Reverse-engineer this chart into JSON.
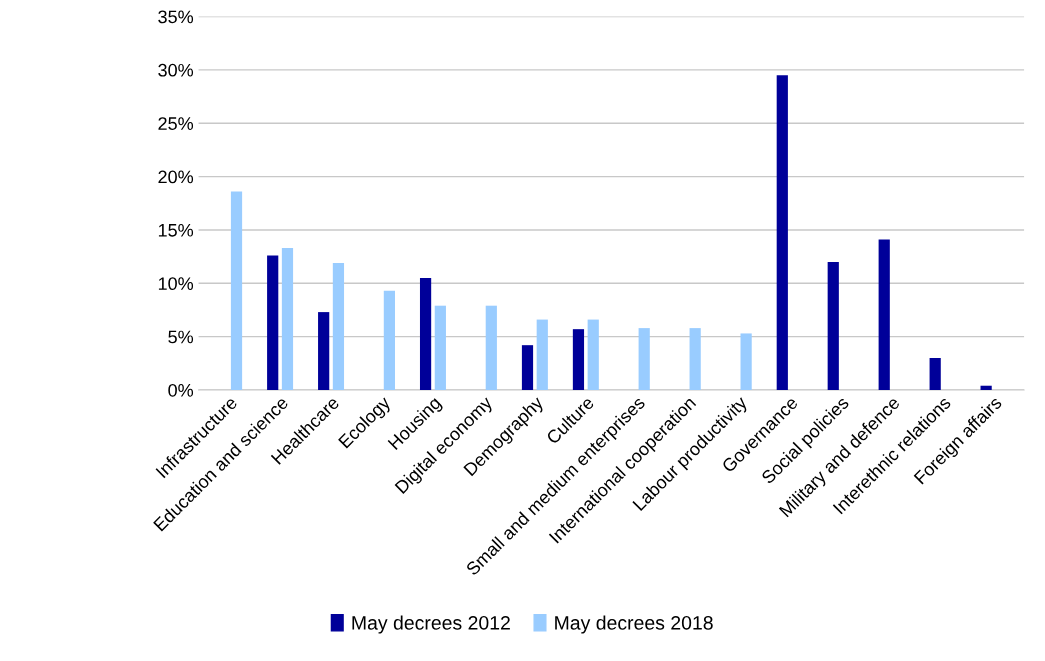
{
  "chart_data": {
    "type": "bar",
    "categories": [
      "Infrastructure",
      "Education and science",
      "Healthcare",
      "Ecology",
      "Housing",
      "Digital economy",
      "Demography",
      "Culture",
      "Small and medium enterprises",
      "International cooperation",
      "Labour productivity",
      "Governance",
      "Social policies",
      "Military and defence",
      "Interethnic relations",
      "Foreign affairs"
    ],
    "series": [
      {
        "name": "May decrees 2012",
        "color": "#000099",
        "values": [
          null,
          12.6,
          7.3,
          null,
          10.5,
          null,
          4.2,
          5.7,
          null,
          null,
          null,
          29.5,
          12.0,
          14.1,
          3.0,
          0.4
        ]
      },
      {
        "name": "May decrees 2018",
        "color": "#99ccff",
        "values": [
          18.6,
          13.3,
          11.9,
          9.3,
          7.9,
          7.9,
          6.6,
          6.6,
          5.8,
          5.8,
          5.3,
          null,
          null,
          null,
          null,
          null
        ]
      }
    ],
    "ylim": [
      0,
      35
    ],
    "yticks": [
      {
        "value": 0,
        "label": "0%"
      },
      {
        "value": 5,
        "label": "5%"
      },
      {
        "value": 10,
        "label": "10%"
      },
      {
        "value": 15,
        "label": "15%"
      },
      {
        "value": 20,
        "label": "20%"
      },
      {
        "value": 25,
        "label": "25%"
      },
      {
        "value": 30,
        "label": "30%"
      },
      {
        "value": 35,
        "label": "35%"
      }
    ],
    "grid": "y",
    "legend": "bottom"
  }
}
